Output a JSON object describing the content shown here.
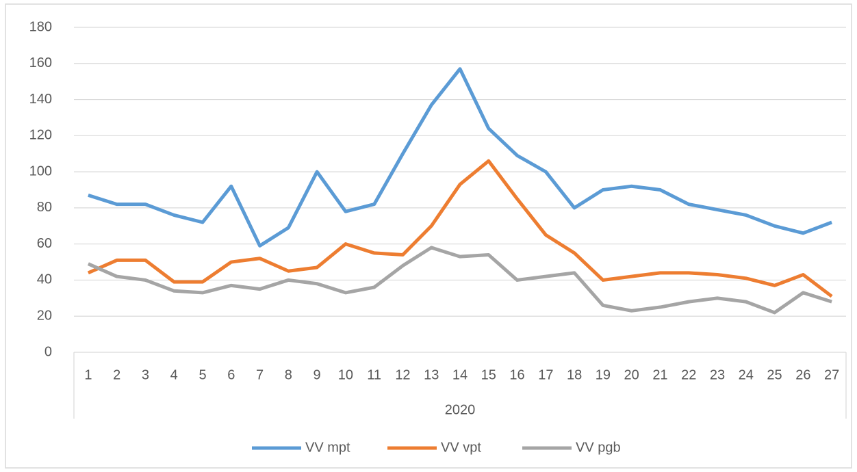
{
  "chart_data": {
    "type": "line",
    "categories": [
      "1",
      "2",
      "3",
      "4",
      "5",
      "6",
      "7",
      "8",
      "9",
      "10",
      "11",
      "12",
      "13",
      "14",
      "15",
      "16",
      "17",
      "18",
      "19",
      "20",
      "21",
      "22",
      "23",
      "24",
      "25",
      "26",
      "27"
    ],
    "category_group": "2020",
    "series": [
      {
        "name": "VV mpt",
        "color": "#5b9bd5",
        "values": [
          87,
          82,
          82,
          76,
          72,
          92,
          59,
          69,
          100,
          78,
          82,
          110,
          137,
          157,
          124,
          109,
          100,
          80,
          90,
          92,
          90,
          82,
          79,
          76,
          70,
          66,
          72
        ]
      },
      {
        "name": "VV vpt",
        "color": "#ed7d31",
        "values": [
          44,
          51,
          51,
          39,
          39,
          50,
          52,
          45,
          47,
          60,
          55,
          54,
          70,
          93,
          106,
          85,
          65,
          55,
          40,
          42,
          44,
          44,
          43,
          41,
          37,
          43,
          31
        ]
      },
      {
        "name": "VV pgb",
        "color": "#a5a5a5",
        "values": [
          49,
          42,
          40,
          34,
          33,
          37,
          35,
          40,
          38,
          33,
          36,
          48,
          58,
          53,
          54,
          40,
          42,
          44,
          26,
          23,
          25,
          28,
          30,
          28,
          22,
          33,
          28
        ]
      }
    ],
    "ylim": [
      0,
      180
    ],
    "yticks": [
      0,
      20,
      40,
      60,
      80,
      100,
      120,
      140,
      160,
      180
    ],
    "grid": true,
    "legend": "bottom"
  }
}
